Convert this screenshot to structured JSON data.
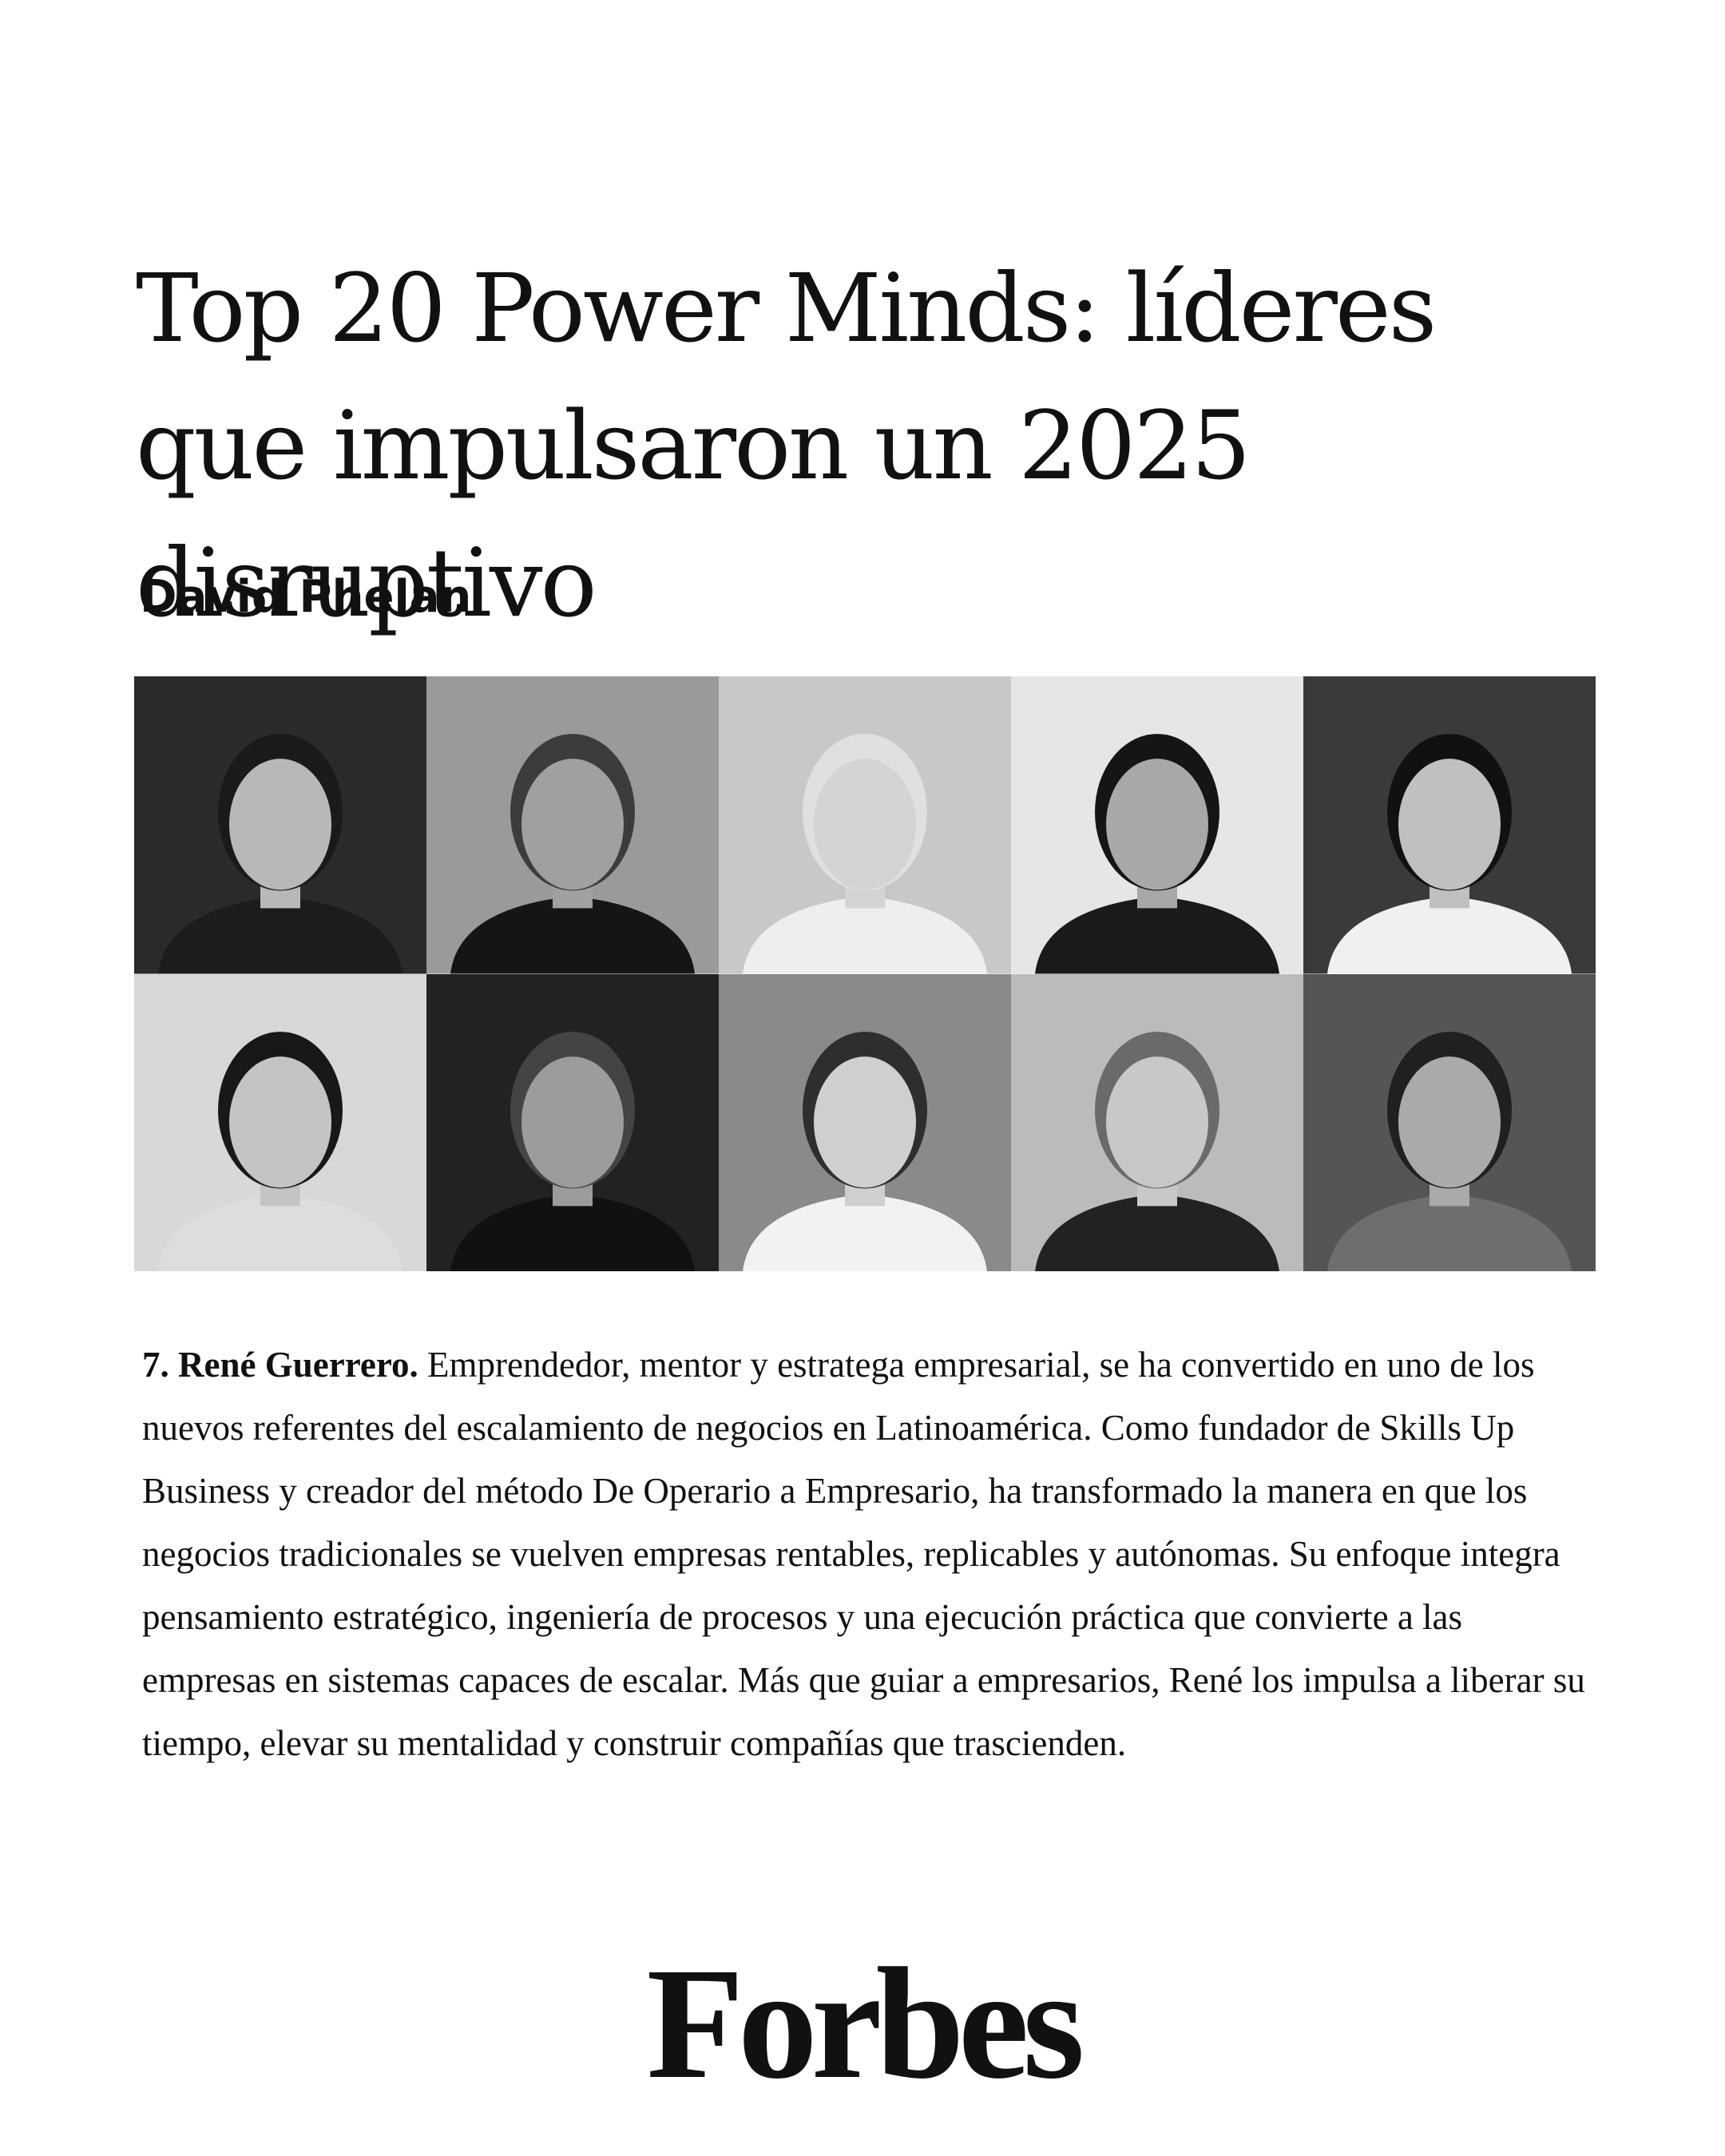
{
  "header": {
    "title": "Top 20 Power Minds: líderes que impulsaron un 2025 disruptivo",
    "author": "David Phelan"
  },
  "article": {
    "lead": "7. René Guerrero.",
    "text": "Emprendedor, mentor y estratega empresarial, se ha convertido en uno de los nuevos referentes del escalamiento de negocios en Latinoamérica. Como fundador de Skills Up Business y creador del método De Operario a Empresario, ha transformado la manera en que los negocios tradicionales se vuelven empresas rentables, replicables y autónomas. Su enfoque integra pensamiento estratégico, ingeniería de procesos y una ejecución práctica que convierte a las empresas en sistemas capaces de escalar. Más que guiar a empresarios, René los impulsa a liberar su tiempo, elevar su mentalidad y construir compañías que trascienden."
  },
  "footer": {
    "logo": "Forbes"
  }
}
